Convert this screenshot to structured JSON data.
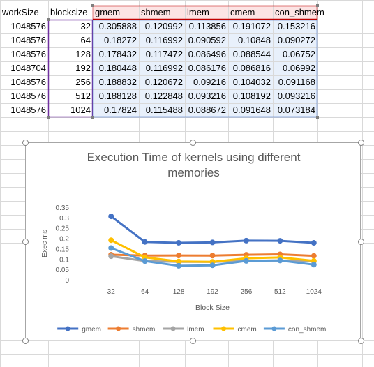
{
  "sheet": {
    "headers": [
      "workSize",
      "blocksize",
      "gmem",
      "shmem",
      "lmem",
      "cmem",
      "con_shmem"
    ],
    "rows": [
      [
        "1048576",
        "32",
        "0.305888",
        "0.120992",
        "0.113856",
        "0.191072",
        "0.153216"
      ],
      [
        "1048576",
        "64",
        "0.18272",
        "0.116992",
        "0.090592",
        "0.10848",
        "0.090272"
      ],
      [
        "1048576",
        "128",
        "0.178432",
        "0.117472",
        "0.086496",
        "0.088544",
        "0.06752"
      ],
      [
        "1048704",
        "192",
        "0.180448",
        "0.116992",
        "0.086176",
        "0.086816",
        "0.06992"
      ],
      [
        "1048576",
        "256",
        "0.188832",
        "0.120672",
        "0.09216",
        "0.104032",
        "0.091168"
      ],
      [
        "1048576",
        "512",
        "0.188128",
        "0.122848",
        "0.093216",
        "0.108192",
        "0.093216"
      ],
      [
        "1048576",
        "1024",
        "0.17824",
        "0.115488",
        "0.088672",
        "0.091648",
        "0.073184"
      ]
    ]
  },
  "chart_data": {
    "type": "line",
    "title": "Execution Time of kernels using different memories",
    "title_lines": [
      "Execution Time of kernels using different",
      "memories"
    ],
    "xlabel": "Block Size",
    "ylabel": "Exec ms",
    "categories": [
      "32",
      "64",
      "128",
      "192",
      "256",
      "512",
      "1024"
    ],
    "y_ticks": [
      "0",
      "0.05",
      "0.1",
      "0.15",
      "0.2",
      "0.25",
      "0.3",
      "0.35"
    ],
    "ylim": [
      0,
      0.35
    ],
    "grid": false,
    "legend_position": "bottom",
    "series": [
      {
        "name": "gmem",
        "color": "#4472c4",
        "values": [
          0.305888,
          0.18272,
          0.178432,
          0.180448,
          0.188832,
          0.188128,
          0.17824
        ]
      },
      {
        "name": "shmem",
        "color": "#ed7d31",
        "values": [
          0.120992,
          0.116992,
          0.117472,
          0.116992,
          0.120672,
          0.122848,
          0.115488
        ]
      },
      {
        "name": "lmem",
        "color": "#a5a5a5",
        "values": [
          0.113856,
          0.090592,
          0.086496,
          0.086176,
          0.09216,
          0.093216,
          0.088672
        ]
      },
      {
        "name": "cmem",
        "color": "#ffc000",
        "values": [
          0.191072,
          0.10848,
          0.088544,
          0.086816,
          0.104032,
          0.108192,
          0.091648
        ]
      },
      {
        "name": "con_shmem",
        "color": "#5b9bd5",
        "values": [
          0.153216,
          0.090272,
          0.06752,
          0.06992,
          0.091168,
          0.093216,
          0.073184
        ]
      }
    ]
  },
  "colors": {
    "gridline": "#d9d9d9",
    "header_highlight": "#fce4e4",
    "data_highlight": "#e8f0fb",
    "blocksize_border": "#7030a0",
    "values_border": "#4472c4",
    "header_border": "#c00000"
  }
}
